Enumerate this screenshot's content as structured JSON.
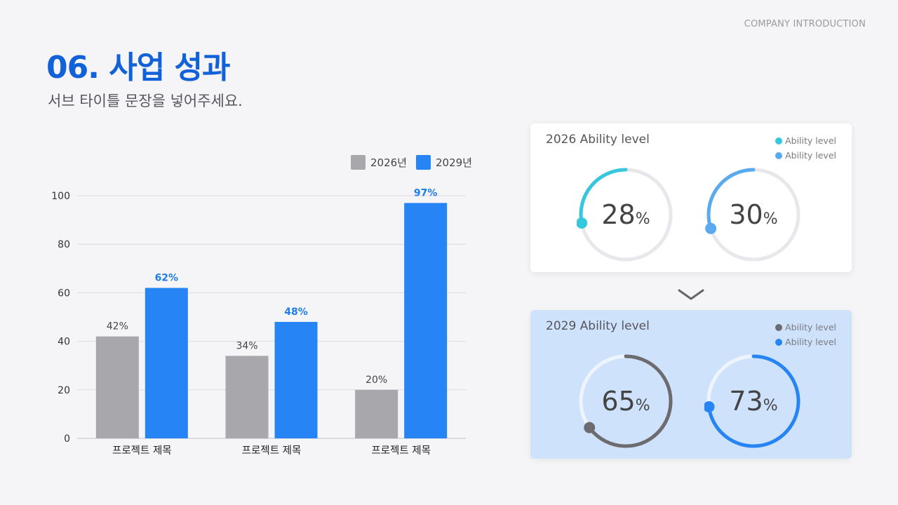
{
  "header": {
    "company": "COMPANY INTRODUCTION",
    "title": "06. 사업 성과",
    "subtitle": "서브 타이틀 문장을 넣어주세요."
  },
  "chart_data": {
    "type": "bar",
    "categories": [
      "프로젝트 제목",
      "프로젝트 제목",
      "프로젝트 제목"
    ],
    "series": [
      {
        "name": "2026년",
        "values": [
          42,
          34,
          20
        ],
        "color": "#a8a7ab",
        "labels": [
          "42%",
          "34%",
          "20%"
        ],
        "label_color": "#444444"
      },
      {
        "name": "2029년",
        "values": [
          62,
          48,
          97
        ],
        "color": "#2684f5",
        "labels": [
          "62%",
          "48%",
          "97%"
        ],
        "label_color": "#1f7de6"
      }
    ],
    "yticks": [
      0,
      20,
      40,
      60,
      80,
      100
    ],
    "ylim": [
      0,
      100
    ],
    "grid": true,
    "legend": "top-right"
  },
  "cards": {
    "card1": {
      "title": "2026 Ability level",
      "legend": [
        {
          "label": "Ability level",
          "color": "#36c6de"
        },
        {
          "label": "Ability level",
          "color": "#5aaaf0"
        }
      ],
      "donuts": [
        {
          "value": 28,
          "number": "28",
          "unit": "%",
          "color": "#36c6de",
          "track": "#e8e8ec"
        },
        {
          "value": 30,
          "number": "30",
          "unit": "%",
          "color": "#5aaaf0",
          "track": "#e8e8ec"
        }
      ]
    },
    "card2": {
      "title": "2029 Ability level",
      "legend": [
        {
          "label": "Ability level",
          "color": "#6b6b70"
        },
        {
          "label": "Ability level",
          "color": "#2684f5"
        }
      ],
      "donuts": [
        {
          "value": 65,
          "number": "65",
          "unit": "%",
          "color": "#6b6b70",
          "track": "#eef4fc"
        },
        {
          "value": 73,
          "number": "73",
          "unit": "%",
          "color": "#2684f5",
          "track": "#eef4fc"
        }
      ]
    }
  }
}
